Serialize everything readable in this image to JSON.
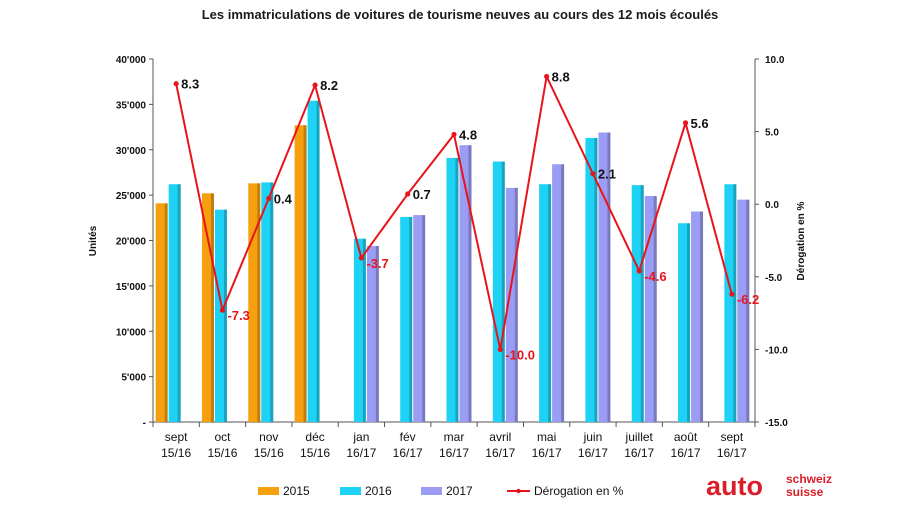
{
  "chart_data": {
    "type": "bar",
    "title": "Les immatriculations de voitures de tourisme neuves au cours des 12 mois écoulés",
    "ylabel": "Unités",
    "y2label": "Dérogation en %",
    "ylim": [
      0,
      40000
    ],
    "y2lim": [
      -15,
      10
    ],
    "yticks": [
      "-",
      "5'000",
      "10'000",
      "15'000",
      "20'000",
      "25'000",
      "30'000",
      "35'000",
      "40'000"
    ],
    "y2ticks": [
      "-15.0",
      "-10.0",
      "-5.0",
      "0.0",
      "5.0",
      "10.0"
    ],
    "categories": [
      [
        "sept",
        "15/16"
      ],
      [
        "oct",
        "15/16"
      ],
      [
        "nov",
        "15/16"
      ],
      [
        "déc",
        "15/16"
      ],
      [
        "jan",
        "16/17"
      ],
      [
        "fév",
        "16/17"
      ],
      [
        "mar",
        "16/17"
      ],
      [
        "avril",
        "16/17"
      ],
      [
        "mai",
        "16/17"
      ],
      [
        "juin",
        "16/17"
      ],
      [
        "juillet",
        "16/17"
      ],
      [
        "août",
        "16/17"
      ],
      [
        "sept",
        "16/17"
      ]
    ],
    "series": [
      {
        "name": "2015",
        "color": "#f7a00f",
        "values": [
          24100,
          25200,
          26300,
          32700,
          null,
          null,
          null,
          null,
          null,
          null,
          null,
          null,
          null
        ]
      },
      {
        "name": "2016",
        "color": "#1ed2f5",
        "values": [
          26200,
          23400,
          26400,
          35400,
          20200,
          22600,
          29100,
          28700,
          26200,
          31300,
          26100,
          21900,
          26200
        ]
      },
      {
        "name": "2017",
        "color": "#9b9cf3",
        "values": [
          null,
          null,
          null,
          null,
          19400,
          22800,
          30500,
          25800,
          28400,
          31900,
          24900,
          23200,
          24500
        ]
      }
    ],
    "line": {
      "name": "Dérogation en %",
      "color": "#e8141c",
      "values": [
        8.3,
        -7.3,
        0.4,
        8.2,
        -3.7,
        0.7,
        4.8,
        -10.0,
        8.8,
        2.1,
        -4.6,
        5.6,
        -6.2
      ],
      "labels": [
        "8.3",
        "-7.3",
        "0.4",
        "8.2",
        "-3.7",
        "0.7",
        "4.8",
        "-10.0",
        "8.8",
        "2.1",
        "-4.6",
        "5.6",
        "-6.2"
      ]
    },
    "legend_position": "bottom"
  },
  "logo": {
    "main": "auto",
    "line1": "schweiz",
    "line2": "suisse",
    "color": "#d91e2a"
  }
}
